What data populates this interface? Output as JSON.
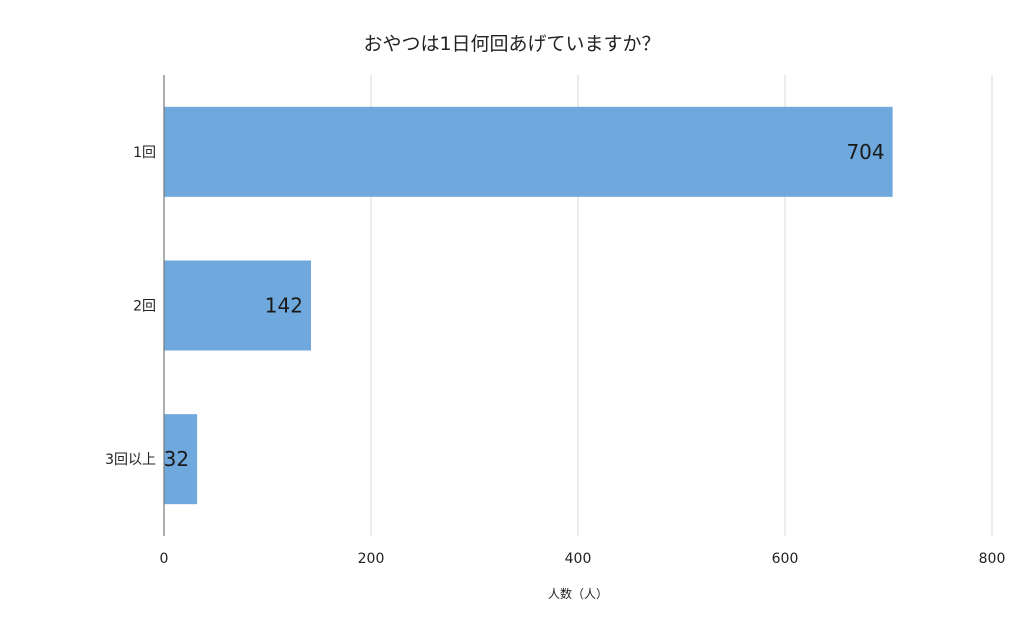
{
  "chart_data": {
    "type": "bar",
    "orientation": "horizontal",
    "title": "おやつは1日何回あげていますか？",
    "categories": [
      "1回",
      "2回",
      "3回以上"
    ],
    "series": [
      {
        "values": [
          704,
          142,
          32
        ]
      }
    ],
    "data_labels": [
      "704",
      "142",
      "32"
    ],
    "xlabel": "人数（人）",
    "ylabel": "",
    "xlim": [
      0,
      800
    ],
    "x_ticks": [
      0,
      200,
      400,
      600,
      800
    ],
    "x_tick_labels": [
      "0",
      "200",
      "400",
      "600",
      "800"
    ],
    "grid": true,
    "legend": "none",
    "bar_color": "#6fa8dc"
  }
}
